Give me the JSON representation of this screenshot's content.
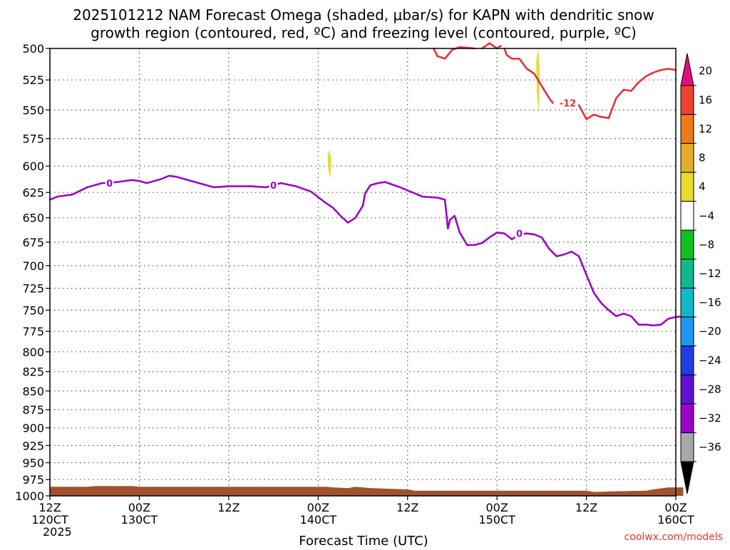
{
  "chart_data": {
    "type": "contour-timeheight",
    "title_lines": [
      "2025101212 NAM Forecast Omega (shaded, μbar/s) for KAPN with dendritic snow",
      "growth region (contoured, red, ºC) and freezing level (contoured, purple, ºC)"
    ],
    "xlabel": "Forecast Time (UTC)",
    "credit": "coolwx.com/models",
    "x_range_hours": [
      0,
      84
    ],
    "y_axis": {
      "scale": "log-pressure",
      "range": [
        1000,
        500
      ],
      "ticks": [
        500,
        525,
        550,
        575,
        600,
        625,
        650,
        675,
        700,
        725,
        750,
        775,
        800,
        825,
        850,
        875,
        900,
        925,
        950,
        975,
        1000
      ]
    },
    "x_ticks": [
      {
        "hour": 0,
        "line1": "12Z",
        "line2": "120CT",
        "line3": "2025"
      },
      {
        "hour": 12,
        "line1": "00Z",
        "line2": "130CT",
        "line3": ""
      },
      {
        "hour": 24,
        "line1": "12Z",
        "line2": "",
        "line3": ""
      },
      {
        "hour": 36,
        "line1": "00Z",
        "line2": "140CT",
        "line3": ""
      },
      {
        "hour": 48,
        "line1": "12Z",
        "line2": "",
        "line3": ""
      },
      {
        "hour": 60,
        "line1": "00Z",
        "line2": "150CT",
        "line3": ""
      },
      {
        "hour": 72,
        "line1": "12Z",
        "line2": "",
        "line3": ""
      },
      {
        "hour": 84,
        "line1": "00Z",
        "line2": "160CT",
        "line3": ""
      }
    ],
    "grid": true,
    "colorbar": {
      "unit": "μbar/s",
      "bins": [
        {
          "color": "#000000",
          "label": "-36"
        },
        {
          "color": "#a8a8a8",
          "label": "-32"
        },
        {
          "color": "#9a06c6",
          "label": "-28"
        },
        {
          "color": "#6010d0",
          "label": "-24"
        },
        {
          "color": "#1f3fe0",
          "label": "-20"
        },
        {
          "color": "#1f97f2",
          "label": "-16"
        },
        {
          "color": "#10b8c8",
          "label": "-12"
        },
        {
          "color": "#10b890",
          "label": "-8"
        },
        {
          "color": "#10c020",
          "label": "-4"
        },
        {
          "color": "#ffffff",
          "label": "4"
        },
        {
          "color": "#e6dc30",
          "label": "8"
        },
        {
          "color": "#e6ae28",
          "label": "12"
        },
        {
          "color": "#ec7a18",
          "label": "16"
        },
        {
          "color": "#ee4030",
          "label": "20"
        },
        {
          "color": "#e0107a",
          "label": ""
        }
      ]
    },
    "series": [
      {
        "color": "#9a06c6",
        "label": "0",
        "label_points": [
          [
            8,
            616
          ],
          [
            30,
            618
          ],
          [
            63,
            666
          ]
        ],
        "points": [
          [
            0,
            632
          ],
          [
            1,
            629
          ],
          [
            3,
            627
          ],
          [
            5,
            620
          ],
          [
            7,
            616
          ],
          [
            9,
            615
          ],
          [
            11,
            613
          ],
          [
            12,
            614
          ],
          [
            13,
            616
          ],
          [
            15,
            612
          ],
          [
            16,
            609
          ],
          [
            17,
            610
          ],
          [
            19,
            614
          ],
          [
            22,
            620
          ],
          [
            24,
            619
          ],
          [
            27,
            619
          ],
          [
            29,
            620
          ],
          [
            31,
            616
          ],
          [
            33,
            619
          ],
          [
            35,
            624
          ],
          [
            37,
            635
          ],
          [
            38,
            640
          ],
          [
            39,
            648
          ],
          [
            40,
            655
          ],
          [
            41,
            650
          ],
          [
            42,
            638
          ],
          [
            42.3,
            626
          ],
          [
            43,
            618
          ],
          [
            44,
            616
          ],
          [
            45,
            615
          ],
          [
            47,
            620
          ],
          [
            48,
            623
          ],
          [
            49,
            626
          ],
          [
            50,
            629
          ],
          [
            52,
            630
          ],
          [
            53,
            632
          ],
          [
            53.2,
            645
          ],
          [
            53.4,
            661
          ],
          [
            53.7,
            652
          ],
          [
            54.3,
            648
          ],
          [
            55,
            665
          ],
          [
            56,
            678
          ],
          [
            57,
            678
          ],
          [
            58,
            676
          ],
          [
            59,
            670
          ],
          [
            60,
            665
          ],
          [
            61,
            666
          ],
          [
            62,
            672
          ],
          [
            63,
            667
          ],
          [
            64,
            666
          ],
          [
            65,
            667
          ],
          [
            66,
            670
          ],
          [
            67,
            682
          ],
          [
            68,
            690
          ],
          [
            69,
            688
          ],
          [
            70,
            685
          ],
          [
            71,
            690
          ],
          [
            72,
            710
          ],
          [
            73,
            730
          ],
          [
            74,
            742
          ],
          [
            75,
            750
          ],
          [
            76,
            757
          ],
          [
            77,
            754
          ],
          [
            78,
            757
          ],
          [
            79,
            767
          ],
          [
            80,
            767
          ],
          [
            81,
            768
          ],
          [
            82,
            767
          ],
          [
            83,
            760
          ],
          [
            84,
            758
          ],
          [
            85,
            757
          ]
        ]
      },
      {
        "color": "#e8303a",
        "label": "-12",
        "label_points": [
          [
            69.5,
            544
          ]
        ],
        "points_segments": [
          [
            [
              51.5,
              500
            ],
            [
              52,
              506
            ],
            [
              53,
              508
            ],
            [
              54,
              501
            ],
            [
              55,
              499
            ],
            [
              57,
              500
            ]
          ],
          [
            [
              58,
              500
            ],
            [
              59,
              496
            ],
            [
              60,
              500
            ],
            [
              60.5,
              498
            ]
          ],
          [
            [
              61,
              500
            ],
            [
              61.3,
              505
            ],
            [
              62,
              508
            ],
            [
              63,
              508
            ],
            [
              64,
              516
            ],
            [
              65,
              520
            ],
            [
              66,
              530
            ],
            [
              67,
              540
            ],
            [
              67.5,
              544
            ]
          ],
          [
            [
              71,
              546
            ],
            [
              72,
              558
            ],
            [
              73,
              554
            ],
            [
              74,
              556
            ],
            [
              75,
              557
            ],
            [
              76,
              540
            ],
            [
              77,
              533
            ],
            [
              78,
              534
            ],
            [
              79,
              527
            ],
            [
              80,
              522
            ],
            [
              81,
              519
            ],
            [
              82,
              517
            ],
            [
              83,
              516
            ],
            [
              84,
              517
            ]
          ]
        ]
      }
    ],
    "shaded_regions": [
      {
        "color": "#e6dc30",
        "label": "4",
        "x": 37.5,
        "p_top": 585,
        "p_bottom": 612
      },
      {
        "color": "#e6dc30",
        "label": "4",
        "x": 65.5,
        "p_top": 500,
        "p_bottom": 553
      }
    ],
    "terrain": {
      "color": "#a0522d",
      "points": [
        [
          0,
          986
        ],
        [
          5,
          986
        ],
        [
          6,
          985
        ],
        [
          11,
          985
        ],
        [
          12,
          986
        ],
        [
          37,
          986
        ],
        [
          38,
          987
        ],
        [
          40,
          988
        ],
        [
          41,
          986
        ],
        [
          43,
          988
        ],
        [
          48,
          990
        ],
        [
          49,
          992
        ],
        [
          72,
          992
        ],
        [
          73,
          994
        ],
        [
          76,
          993
        ],
        [
          80,
          992
        ],
        [
          81,
          990
        ],
        [
          83,
          987
        ],
        [
          85,
          987
        ]
      ]
    }
  }
}
